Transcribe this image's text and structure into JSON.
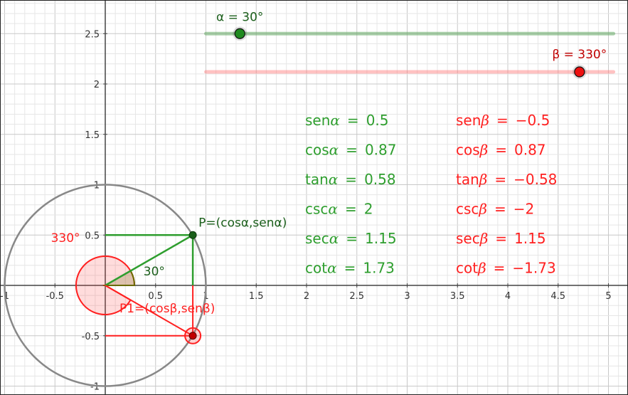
{
  "colors": {
    "alpha": "#2e9e2e",
    "alpha_dark": "#1a5e1a",
    "beta": "#ff1f1f",
    "beta_dark": "#c00000",
    "circle": "#888888",
    "grid_minor": "#e6e6e6",
    "grid_major": "#c8c8c8",
    "axis": "#444444"
  },
  "axes": {
    "x_range": [
      -1,
      5.15
    ],
    "y_range": [
      -1,
      2.8
    ],
    "x_ticks": [
      {
        "v": -1,
        "label": "-1"
      },
      {
        "v": -0.5,
        "label": "-0.5"
      },
      {
        "v": 0.5,
        "label": "0.5"
      },
      {
        "v": 1,
        "label": "1"
      },
      {
        "v": 1.5,
        "label": "1.5"
      },
      {
        "v": 2,
        "label": "2"
      },
      {
        "v": 2.5,
        "label": "2.5"
      },
      {
        "v": 3,
        "label": "3"
      },
      {
        "v": 3.5,
        "label": "3.5"
      },
      {
        "v": 4,
        "label": "4"
      },
      {
        "v": 4.5,
        "label": "4.5"
      },
      {
        "v": 5,
        "label": "5"
      }
    ],
    "y_ticks": [
      {
        "v": -1,
        "label": "-1"
      },
      {
        "v": -0.5,
        "label": "-0.5"
      },
      {
        "v": 0.5,
        "label": "0.5"
      },
      {
        "v": 1,
        "label": "1"
      },
      {
        "v": 1.5,
        "label": "1.5"
      },
      {
        "v": 2,
        "label": "2"
      },
      {
        "v": 2.5,
        "label": "2.5"
      }
    ]
  },
  "sliders": {
    "alpha": {
      "label": "α = 30°",
      "value_deg": 30,
      "min_deg": 0,
      "max_deg": 360,
      "track_x": [
        1.0,
        5.05
      ],
      "track_y": 2.5
    },
    "beta": {
      "label": "β = 330°",
      "value_deg": 330,
      "min_deg": 0,
      "max_deg": 360,
      "track_x": [
        1.0,
        5.05
      ],
      "track_y": 2.12
    }
  },
  "points": {
    "P": {
      "label": "P=(cosα,senα)",
      "x": 0.87,
      "y": 0.5
    },
    "P1": {
      "label": "P1=(cosβ,senβ)",
      "x": 0.87,
      "y": -0.5
    }
  },
  "angles": {
    "alpha_label": "30°",
    "beta_label": "330°"
  },
  "alpha_values": [
    {
      "fn": "sen",
      "var": "α",
      "eq": "=",
      "val": "0.5"
    },
    {
      "fn": "cos",
      "var": "α",
      "eq": "=",
      "val": "0.87"
    },
    {
      "fn": "tan",
      "var": "α",
      "eq": "=",
      "val": "0.58"
    },
    {
      "fn": "csc",
      "var": "α",
      "eq": "=",
      "val": "2"
    },
    {
      "fn": "sec",
      "var": "α",
      "eq": "=",
      "val": "1.15"
    },
    {
      "fn": "cot",
      "var": "α",
      "eq": "=",
      "val": "1.73"
    }
  ],
  "beta_values": [
    {
      "fn": "sen",
      "var": "β",
      "eq": "=",
      "val": "−0.5"
    },
    {
      "fn": "cos",
      "var": "β",
      "eq": "=",
      "val": "0.87"
    },
    {
      "fn": "tan",
      "var": "β",
      "eq": "=",
      "val": "−0.58"
    },
    {
      "fn": "csc",
      "var": "β",
      "eq": "=",
      "val": "−2"
    },
    {
      "fn": "sec",
      "var": "β",
      "eq": "=",
      "val": "1.15"
    },
    {
      "fn": "cot",
      "var": "β",
      "eq": "=",
      "val": "−1.73"
    }
  ]
}
